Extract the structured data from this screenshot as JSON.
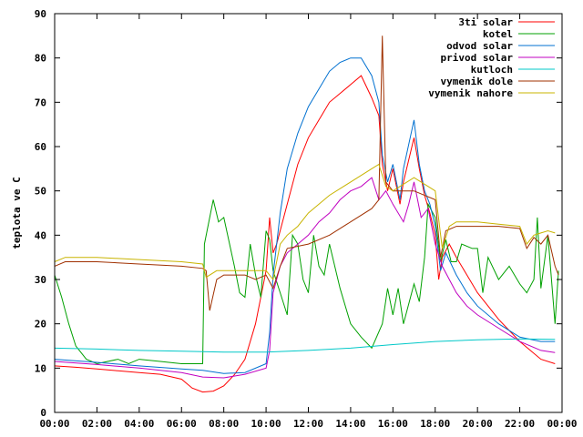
{
  "chart_data": {
    "type": "line",
    "title": "",
    "xlabel": "",
    "ylabel": "teplota ve C",
    "xlim": [
      "00:00",
      "24:00"
    ],
    "ylim": [
      0,
      90
    ],
    "grid": false,
    "legend_position": "top-right",
    "x_ticks": [
      "00:00",
      "02:00",
      "04:00",
      "06:00",
      "08:00",
      "10:00",
      "12:00",
      "14:00",
      "16:00",
      "18:00",
      "20:00",
      "22:00",
      "00:00"
    ],
    "y_ticks": [
      0,
      10,
      20,
      30,
      40,
      50,
      60,
      70,
      80,
      90
    ],
    "series": [
      {
        "name": "3ti solar",
        "color": "#ff0000",
        "points": [
          [
            "00:00",
            10.5
          ],
          [
            "01:00",
            10.2
          ],
          [
            "02:00",
            9.8
          ],
          [
            "03:00",
            9.4
          ],
          [
            "04:00",
            9.0
          ],
          [
            "05:00",
            8.6
          ],
          [
            "06:00",
            7.5
          ],
          [
            "06:30",
            5.5
          ],
          [
            "07:00",
            4.6
          ],
          [
            "07:30",
            4.8
          ],
          [
            "08:00",
            6.0
          ],
          [
            "08:30",
            8.5
          ],
          [
            "09:00",
            12.0
          ],
          [
            "09:30",
            20.0
          ],
          [
            "10:00",
            32.0
          ],
          [
            "10:10",
            44.0
          ],
          [
            "10:20",
            36.0
          ],
          [
            "10:30",
            38.0
          ],
          [
            "11:00",
            47.0
          ],
          [
            "11:30",
            56.0
          ],
          [
            "12:00",
            62.0
          ],
          [
            "12:30",
            66.0
          ],
          [
            "13:00",
            70.0
          ],
          [
            "13:30",
            72.0
          ],
          [
            "14:00",
            74.0
          ],
          [
            "14:30",
            76.0
          ],
          [
            "15:00",
            71.0
          ],
          [
            "15:20",
            67.0
          ],
          [
            "15:30",
            56.0
          ],
          [
            "15:45",
            50.0
          ],
          [
            "16:00",
            55.0
          ],
          [
            "16:20",
            47.0
          ],
          [
            "16:30",
            52.0
          ],
          [
            "17:00",
            62.0
          ],
          [
            "17:15",
            55.0
          ],
          [
            "17:30",
            49.0
          ],
          [
            "17:45",
            45.0
          ],
          [
            "18:00",
            40.0
          ],
          [
            "18:10",
            30.0
          ],
          [
            "18:20",
            35.0
          ],
          [
            "18:40",
            38.0
          ],
          [
            "19:00",
            35.0
          ],
          [
            "19:30",
            31.0
          ],
          [
            "20:00",
            27.0
          ],
          [
            "20:30",
            24.0
          ],
          [
            "21:00",
            21.0
          ],
          [
            "21:30",
            18.5
          ],
          [
            "22:00",
            16.0
          ],
          [
            "22:30",
            14.0
          ],
          [
            "23:00",
            12.0
          ],
          [
            "23:40",
            11.0
          ]
        ]
      },
      {
        "name": "kotel",
        "color": "#00a000",
        "points": [
          [
            "00:00",
            31.0
          ],
          [
            "00:20",
            26.0
          ],
          [
            "00:40",
            20.0
          ],
          [
            "01:00",
            15.0
          ],
          [
            "01:30",
            12.0
          ],
          [
            "02:00",
            11.0
          ],
          [
            "03:00",
            12.0
          ],
          [
            "03:30",
            11.0
          ],
          [
            "04:00",
            12.0
          ],
          [
            "05:00",
            11.5
          ],
          [
            "06:00",
            11.0
          ],
          [
            "07:00",
            11.0
          ],
          [
            "07:05",
            38.0
          ],
          [
            "07:30",
            48.0
          ],
          [
            "07:45",
            43.0
          ],
          [
            "08:00",
            44.0
          ],
          [
            "08:30",
            33.0
          ],
          [
            "08:45",
            27.0
          ],
          [
            "09:00",
            26.0
          ],
          [
            "09:15",
            38.0
          ],
          [
            "09:30",
            31.0
          ],
          [
            "09:45",
            26.0
          ],
          [
            "10:00",
            41.0
          ],
          [
            "10:10",
            39.0
          ],
          [
            "10:20",
            32.0
          ],
          [
            "10:40",
            27.0
          ],
          [
            "11:00",
            22.0
          ],
          [
            "11:15",
            40.0
          ],
          [
            "11:30",
            38.0
          ],
          [
            "11:45",
            30.0
          ],
          [
            "12:00",
            27.0
          ],
          [
            "12:15",
            40.0
          ],
          [
            "12:30",
            33.0
          ],
          [
            "12:45",
            31.0
          ],
          [
            "13:00",
            38.0
          ],
          [
            "13:30",
            28.0
          ],
          [
            "14:00",
            20.0
          ],
          [
            "14:30",
            17.0
          ],
          [
            "15:00",
            14.5
          ],
          [
            "15:30",
            20.0
          ],
          [
            "15:45",
            28.0
          ],
          [
            "16:00",
            22.0
          ],
          [
            "16:15",
            28.0
          ],
          [
            "16:30",
            20.0
          ],
          [
            "17:00",
            29.0
          ],
          [
            "17:15",
            25.0
          ],
          [
            "17:30",
            35.0
          ],
          [
            "17:40",
            47.0
          ],
          [
            "18:00",
            44.0
          ],
          [
            "18:15",
            34.0
          ],
          [
            "18:30",
            39.0
          ],
          [
            "18:45",
            34.0
          ],
          [
            "19:00",
            34.0
          ],
          [
            "19:15",
            38.0
          ],
          [
            "19:45",
            37.0
          ],
          [
            "20:00",
            37.0
          ],
          [
            "20:15",
            27.0
          ],
          [
            "20:30",
            35.0
          ],
          [
            "21:00",
            30.0
          ],
          [
            "21:30",
            33.0
          ],
          [
            "22:00",
            29.0
          ],
          [
            "22:20",
            27.0
          ],
          [
            "22:40",
            30.0
          ],
          [
            "22:50",
            44.0
          ],
          [
            "23:00",
            28.0
          ],
          [
            "23:20",
            40.0
          ],
          [
            "23:40",
            20.0
          ],
          [
            "23:50",
            32.0
          ]
        ]
      },
      {
        "name": "odvod solar",
        "color": "#0070d0",
        "points": [
          [
            "00:00",
            12.0
          ],
          [
            "02:00",
            11.3
          ],
          [
            "04:00",
            10.5
          ],
          [
            "06:00",
            9.8
          ],
          [
            "07:00",
            9.5
          ],
          [
            "08:00",
            8.8
          ],
          [
            "09:00",
            9.0
          ],
          [
            "10:00",
            11.0
          ],
          [
            "10:10",
            18.0
          ],
          [
            "10:20",
            31.0
          ],
          [
            "10:40",
            45.0
          ],
          [
            "11:00",
            55.0
          ],
          [
            "11:30",
            63.0
          ],
          [
            "12:00",
            69.0
          ],
          [
            "12:30",
            73.0
          ],
          [
            "13:00",
            77.0
          ],
          [
            "13:30",
            79.0
          ],
          [
            "14:00",
            80.0
          ],
          [
            "14:30",
            80.0
          ],
          [
            "15:00",
            76.0
          ],
          [
            "15:20",
            70.0
          ],
          [
            "15:30",
            58.0
          ],
          [
            "15:45",
            52.0
          ],
          [
            "16:00",
            56.0
          ],
          [
            "16:20",
            48.0
          ],
          [
            "16:30",
            55.0
          ],
          [
            "17:00",
            66.0
          ],
          [
            "17:15",
            56.0
          ],
          [
            "17:30",
            50.0
          ],
          [
            "17:45",
            47.0
          ],
          [
            "18:00",
            42.0
          ],
          [
            "18:15",
            32.0
          ],
          [
            "18:30",
            36.0
          ],
          [
            "19:00",
            31.0
          ],
          [
            "19:30",
            27.0
          ],
          [
            "20:00",
            24.0
          ],
          [
            "21:00",
            20.0
          ],
          [
            "22:00",
            17.0
          ],
          [
            "23:00",
            16.0
          ],
          [
            "23:40",
            16.0
          ]
        ]
      },
      {
        "name": "privod solar",
        "color": "#c000c0",
        "points": [
          [
            "00:00",
            11.5
          ],
          [
            "02:00",
            10.8
          ],
          [
            "04:00",
            10.0
          ],
          [
            "06:00",
            9.0
          ],
          [
            "07:00",
            8.0
          ],
          [
            "08:00",
            7.8
          ],
          [
            "09:00",
            8.6
          ],
          [
            "10:00",
            10.0
          ],
          [
            "10:10",
            14.0
          ],
          [
            "10:20",
            27.0
          ],
          [
            "10:40",
            33.0
          ],
          [
            "11:00",
            36.0
          ],
          [
            "11:30",
            38.0
          ],
          [
            "12:00",
            40.0
          ],
          [
            "12:30",
            43.0
          ],
          [
            "13:00",
            45.0
          ],
          [
            "13:30",
            48.0
          ],
          [
            "14:00",
            50.0
          ],
          [
            "14:30",
            51.0
          ],
          [
            "15:00",
            53.0
          ],
          [
            "15:20",
            48.0
          ],
          [
            "15:40",
            50.0
          ],
          [
            "16:00",
            47.0
          ],
          [
            "16:30",
            43.0
          ],
          [
            "16:45",
            47.0
          ],
          [
            "17:00",
            52.0
          ],
          [
            "17:20",
            44.0
          ],
          [
            "17:40",
            46.0
          ],
          [
            "18:00",
            38.0
          ],
          [
            "18:20",
            33.0
          ],
          [
            "19:00",
            27.0
          ],
          [
            "19:30",
            24.0
          ],
          [
            "20:00",
            22.0
          ],
          [
            "21:00",
            19.0
          ],
          [
            "22:00",
            16.0
          ],
          [
            "23:00",
            14.0
          ],
          [
            "23:40",
            13.5
          ]
        ]
      },
      {
        "name": "kutloch",
        "color": "#00c8c8",
        "points": [
          [
            "00:00",
            14.5
          ],
          [
            "02:00",
            14.3
          ],
          [
            "04:00",
            14.0
          ],
          [
            "06:00",
            13.8
          ],
          [
            "08:00",
            13.6
          ],
          [
            "10:00",
            13.6
          ],
          [
            "12:00",
            14.0
          ],
          [
            "14:00",
            14.5
          ],
          [
            "16:00",
            15.3
          ],
          [
            "18:00",
            16.0
          ],
          [
            "20:00",
            16.4
          ],
          [
            "22:00",
            16.6
          ],
          [
            "23:40",
            16.5
          ]
        ]
      },
      {
        "name": "vymenik dole",
        "color": "#a03000",
        "points": [
          [
            "00:00",
            33.0
          ],
          [
            "00:30",
            34.0
          ],
          [
            "02:00",
            34.0
          ],
          [
            "04:00",
            33.5
          ],
          [
            "06:00",
            33.0
          ],
          [
            "07:00",
            32.5
          ],
          [
            "07:10",
            32.0
          ],
          [
            "07:20",
            23.0
          ],
          [
            "07:40",
            30.0
          ],
          [
            "08:00",
            31.0
          ],
          [
            "09:00",
            31.0
          ],
          [
            "09:30",
            30.0
          ],
          [
            "10:00",
            31.0
          ],
          [
            "10:20",
            28.0
          ],
          [
            "10:40",
            33.0
          ],
          [
            "11:00",
            37.0
          ],
          [
            "11:30",
            37.5
          ],
          [
            "12:00",
            38.0
          ],
          [
            "13:00",
            40.0
          ],
          [
            "14:00",
            43.0
          ],
          [
            "15:00",
            46.0
          ],
          [
            "15:20",
            48.0
          ],
          [
            "15:30",
            85.0
          ],
          [
            "15:40",
            52.0
          ],
          [
            "16:00",
            50.0
          ],
          [
            "17:00",
            50.0
          ],
          [
            "18:00",
            48.0
          ],
          [
            "18:15",
            35.0
          ],
          [
            "18:30",
            41.0
          ],
          [
            "19:00",
            42.0
          ],
          [
            "20:00",
            42.0
          ],
          [
            "21:00",
            42.0
          ],
          [
            "22:00",
            41.5
          ],
          [
            "22:20",
            37.0
          ],
          [
            "22:40",
            39.5
          ],
          [
            "23:00",
            38.0
          ],
          [
            "23:20",
            40.0
          ],
          [
            "23:40",
            33.0
          ],
          [
            "23:50",
            31.0
          ]
        ]
      },
      {
        "name": "vymenik nahore",
        "color": "#c8b400",
        "points": [
          [
            "00:00",
            34.0
          ],
          [
            "00:30",
            35.0
          ],
          [
            "02:00",
            35.0
          ],
          [
            "04:00",
            34.5
          ],
          [
            "06:00",
            34.0
          ],
          [
            "07:00",
            33.5
          ],
          [
            "07:10",
            30.5
          ],
          [
            "07:40",
            32.0
          ],
          [
            "08:00",
            32.0
          ],
          [
            "10:00",
            32.0
          ],
          [
            "10:20",
            30.0
          ],
          [
            "10:40",
            38.0
          ],
          [
            "11:00",
            40.0
          ],
          [
            "11:30",
            42.0
          ],
          [
            "12:00",
            45.0
          ],
          [
            "13:00",
            49.0
          ],
          [
            "14:00",
            52.0
          ],
          [
            "15:00",
            55.0
          ],
          [
            "15:20",
            56.0
          ],
          [
            "15:40",
            51.0
          ],
          [
            "16:00",
            50.0
          ],
          [
            "17:00",
            53.0
          ],
          [
            "18:00",
            50.0
          ],
          [
            "18:20",
            37.0
          ],
          [
            "18:40",
            42.0
          ],
          [
            "19:00",
            43.0
          ],
          [
            "20:00",
            43.0
          ],
          [
            "21:00",
            42.5
          ],
          [
            "22:00",
            42.0
          ],
          [
            "22:20",
            38.0
          ],
          [
            "22:40",
            40.0
          ],
          [
            "23:00",
            40.5
          ],
          [
            "23:20",
            41.0
          ],
          [
            "23:40",
            40.5
          ]
        ]
      }
    ]
  }
}
